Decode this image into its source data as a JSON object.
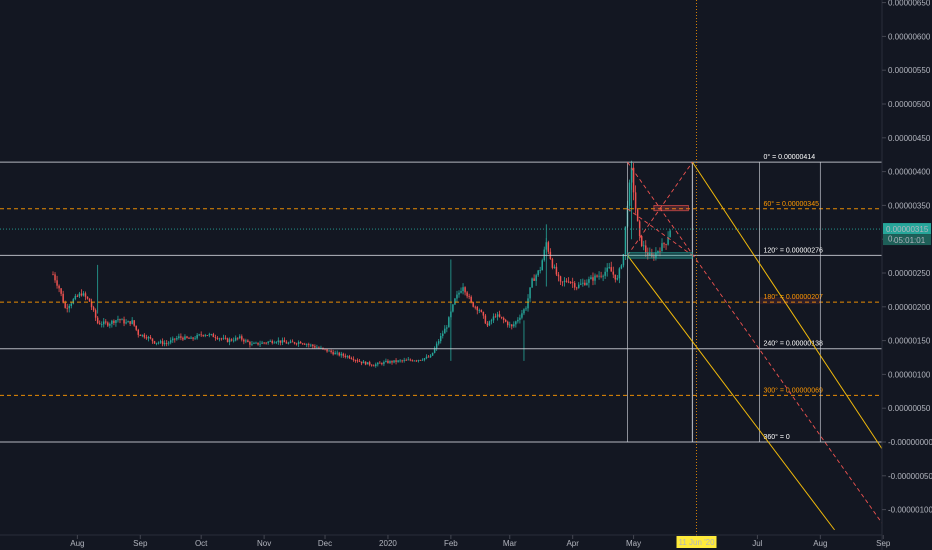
{
  "colors": {
    "background": "#131722",
    "bull": "#26a69a",
    "bear": "#ef5350",
    "white_level": "#d1d4dc",
    "orange_level": "#ff9800",
    "yellow_line": "#f0b90b",
    "red_dash": "#ef5350",
    "price_badge": "#26a69a",
    "date_badge": "#ffeb3b"
  },
  "y_axis": {
    "ticks": [
      {
        "v": 650,
        "label": "0.00000650"
      },
      {
        "v": 600,
        "label": "0.00000600"
      },
      {
        "v": 550,
        "label": "0.00000550"
      },
      {
        "v": 500,
        "label": "0.00000500"
      },
      {
        "v": 450,
        "label": "0.00000450"
      },
      {
        "v": 400,
        "label": "0.00000400"
      },
      {
        "v": 350,
        "label": "0.00000350"
      },
      {
        "v": 300,
        "label": "0.00000300"
      },
      {
        "v": 250,
        "label": "0.00000250"
      },
      {
        "v": 200,
        "label": "0.00000200"
      },
      {
        "v": 150,
        "label": "0.00000150"
      },
      {
        "v": 100,
        "label": "0.00000100"
      },
      {
        "v": 50,
        "label": "0.00000050"
      },
      {
        "v": 0,
        "label": "-0.00000000"
      },
      {
        "v": -50,
        "label": "-0.00000050"
      },
      {
        "v": -100,
        "label": "-0.00000100"
      }
    ],
    "current_price_label": "0.00000315",
    "countdown_label": "05:01:01",
    "hidden_tick_label": "0."
  },
  "x_axis": {
    "ticks": [
      {
        "d": 12,
        "label": "Aug"
      },
      {
        "d": 43,
        "label": "Sep"
      },
      {
        "d": 73,
        "label": "Oct"
      },
      {
        "d": 104,
        "label": "Nov"
      },
      {
        "d": 134,
        "label": "Dec"
      },
      {
        "d": 165,
        "label": "2020"
      },
      {
        "d": 196,
        "label": "Feb"
      },
      {
        "d": 225,
        "label": "Mar"
      },
      {
        "d": 256,
        "label": "Apr"
      },
      {
        "d": 286,
        "label": "May"
      },
      {
        "d": 317,
        "label": "Ju"
      },
      {
        "d": 347,
        "label": "Jul"
      },
      {
        "d": 378,
        "label": "Aug"
      },
      {
        "d": 409,
        "label": "Sep"
      }
    ],
    "date_badge": "11 Jun '20"
  },
  "levels": [
    {
      "v": 414,
      "label": "0° = 0.00000414",
      "style": "white"
    },
    {
      "v": 345,
      "label": "60° = 0.00000345",
      "style": "orange"
    },
    {
      "v": 276,
      "label": "120° = 0.00000276",
      "style": "white"
    },
    {
      "v": 207,
      "label": "180° = 0.00000207",
      "style": "orange"
    },
    {
      "v": 138,
      "label": "240° = 0.00000138",
      "style": "white"
    },
    {
      "v": 69,
      "label": "300° = 0.00000069",
      "style": "orange"
    },
    {
      "v": 0,
      "label": "360° = 0",
      "style": "white"
    }
  ],
  "chart_data": {
    "type": "candlestick",
    "symbol_price_now": "0.00000315",
    "y_unit": "x1e-8",
    "ylim": [
      -160,
      660
    ],
    "x_axis_months": [
      "Aug",
      "Sep",
      "Oct",
      "Nov",
      "Dec",
      "2020",
      "Feb",
      "Mar",
      "Apr",
      "May",
      "Jun",
      "Jul",
      "Aug",
      "Sep"
    ],
    "price_anchors": [
      {
        "d": 0,
        "p": 248
      },
      {
        "d": 3,
        "p": 228
      },
      {
        "d": 6,
        "p": 198
      },
      {
        "d": 10,
        "p": 210
      },
      {
        "d": 14,
        "p": 220
      },
      {
        "d": 18,
        "p": 208
      },
      {
        "d": 22,
        "p": 176
      },
      {
        "d": 27,
        "p": 175
      },
      {
        "d": 32,
        "p": 182
      },
      {
        "d": 36,
        "p": 176
      },
      {
        "d": 39,
        "p": 178
      },
      {
        "d": 42,
        "p": 160
      },
      {
        "d": 46,
        "p": 156
      },
      {
        "d": 50,
        "p": 148
      },
      {
        "d": 56,
        "p": 146
      },
      {
        "d": 62,
        "p": 155
      },
      {
        "d": 68,
        "p": 152
      },
      {
        "d": 74,
        "p": 160
      },
      {
        "d": 80,
        "p": 156
      },
      {
        "d": 86,
        "p": 150
      },
      {
        "d": 92,
        "p": 154
      },
      {
        "d": 98,
        "p": 144
      },
      {
        "d": 104,
        "p": 147
      },
      {
        "d": 110,
        "p": 150
      },
      {
        "d": 116,
        "p": 146
      },
      {
        "d": 122,
        "p": 148
      },
      {
        "d": 128,
        "p": 142
      },
      {
        "d": 134,
        "p": 136
      },
      {
        "d": 140,
        "p": 130
      },
      {
        "d": 146,
        "p": 126
      },
      {
        "d": 152,
        "p": 118
      },
      {
        "d": 158,
        "p": 114
      },
      {
        "d": 164,
        "p": 118
      },
      {
        "d": 172,
        "p": 120
      },
      {
        "d": 180,
        "p": 122
      },
      {
        "d": 186,
        "p": 126
      },
      {
        "d": 190,
        "p": 150
      },
      {
        "d": 194,
        "p": 172
      },
      {
        "d": 198,
        "p": 210
      },
      {
        "d": 202,
        "p": 232
      },
      {
        "d": 206,
        "p": 205
      },
      {
        "d": 210,
        "p": 196
      },
      {
        "d": 214,
        "p": 172
      },
      {
        "d": 218,
        "p": 188
      },
      {
        "d": 222,
        "p": 180
      },
      {
        "d": 226,
        "p": 170
      },
      {
        "d": 229,
        "p": 182
      },
      {
        "d": 233,
        "p": 200
      },
      {
        "d": 236,
        "p": 238
      },
      {
        "d": 240,
        "p": 256
      },
      {
        "d": 243,
        "p": 295
      },
      {
        "d": 246,
        "p": 262
      },
      {
        "d": 250,
        "p": 234
      },
      {
        "d": 254,
        "p": 240
      },
      {
        "d": 258,
        "p": 230
      },
      {
        "d": 262,
        "p": 236
      },
      {
        "d": 266,
        "p": 242
      },
      {
        "d": 270,
        "p": 248
      },
      {
        "d": 274,
        "p": 256
      },
      {
        "d": 278,
        "p": 240
      },
      {
        "d": 281,
        "p": 278
      },
      {
        "d": 283,
        "p": 355
      },
      {
        "d": 285,
        "p": 400
      },
      {
        "d": 287,
        "p": 345
      },
      {
        "d": 289,
        "p": 300
      },
      {
        "d": 292,
        "p": 282
      },
      {
        "d": 295,
        "p": 272
      },
      {
        "d": 298,
        "p": 284
      },
      {
        "d": 300,
        "p": 290
      },
      {
        "d": 302,
        "p": 296
      },
      {
        "d": 304,
        "p": 315
      }
    ]
  }
}
